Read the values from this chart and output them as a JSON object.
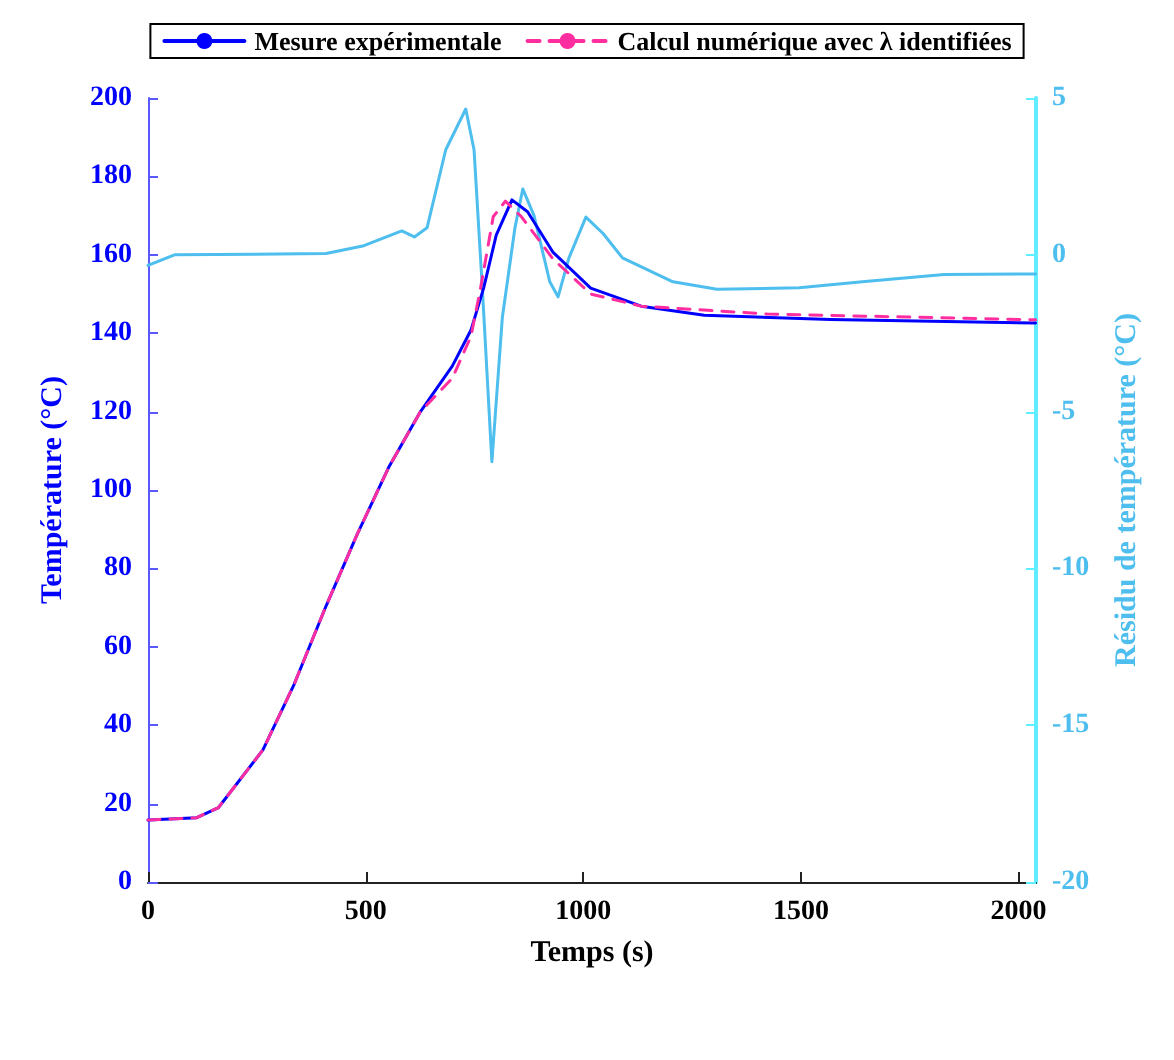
{
  "chart_data": {
    "type": "line",
    "xlabel": "Temps (s)",
    "ylabel": "Température (°C)",
    "y2label": "Résidu de température (°C)",
    "xlim": [
      0,
      2040
    ],
    "xticks": [
      0,
      500,
      1000,
      1500,
      2000
    ],
    "ylim": [
      0,
      200
    ],
    "yticks": [
      0,
      20,
      40,
      60,
      80,
      100,
      120,
      140,
      160,
      180,
      200
    ],
    "y2lim": [
      -20,
      5
    ],
    "y2ticks": [
      -20,
      -15,
      -10,
      -5,
      0,
      5
    ],
    "grid": false,
    "legend": "top",
    "marker": "none",
    "series": [
      {
        "name": "Mesure expérimentale",
        "color": "#0000ff",
        "line_style": "solid",
        "x": [
          0,
          112,
          162,
          264,
          336,
          409,
          481,
          554,
          626,
          699,
          742,
          771,
          800,
          836,
          872,
          930,
          1017,
          1133,
          1278,
          1568,
          2039
        ],
        "values": [
          15.8,
          16.4,
          19,
          33.7,
          50.5,
          70.4,
          88.8,
          106,
          120,
          131.6,
          140.8,
          151.5,
          165,
          174,
          171,
          160.7,
          151.5,
          146.9,
          144.6,
          143.5,
          142.6
        ]
      },
      {
        "name": "Calcul numérique avec λ identifiées",
        "color": "#ff2ea0",
        "line_style": "dashed",
        "x": [
          0,
          112,
          162,
          264,
          336,
          409,
          481,
          554,
          626,
          699,
          742,
          764,
          793,
          821,
          858,
          930,
          1017,
          1133,
          1423,
          2039
        ],
        "values": [
          15.8,
          16.4,
          19,
          33.7,
          50.5,
          70.4,
          88.8,
          106,
          120,
          128.5,
          139.2,
          151.5,
          169.7,
          173.7,
          169.7,
          159,
          150,
          146.9,
          144.9,
          143.4
        ]
      },
      {
        "color": "#4dbeee",
        "line_style": "solid",
        "axis": "y2",
        "x": [
          0,
          61,
          409,
          496,
          583,
          612,
          641,
          684,
          730,
          749,
          768,
          790,
          814,
          843,
          861,
          887,
          923,
          942,
          967,
          1006,
          1046,
          1090,
          1206,
          1307,
          1496,
          1641,
          1829,
          2039
        ],
        "values": [
          -0.34,
          0,
          0.04,
          0.29,
          0.76,
          0.57,
          0.86,
          3.35,
          4.65,
          3.35,
          -1.05,
          -6.6,
          -2,
          0.86,
          2.1,
          1.24,
          -0.86,
          -1.34,
          -0.1,
          1.2,
          0.67,
          -0.1,
          -0.86,
          -1.1,
          -1.05,
          -0.86,
          -0.63,
          -0.61
        ]
      }
    ]
  }
}
